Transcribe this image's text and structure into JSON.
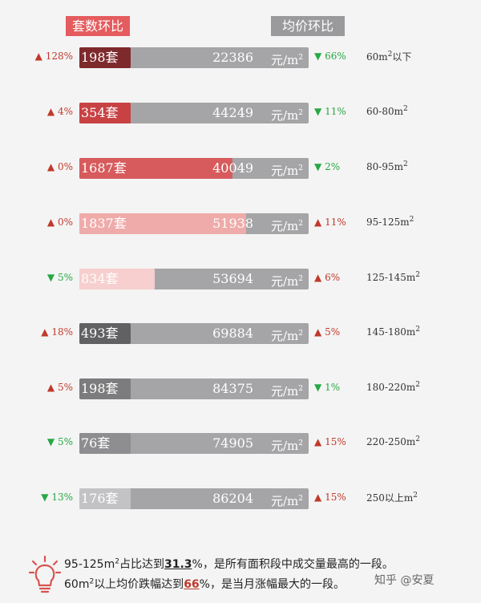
{
  "headers": {
    "count_label": "套数环比",
    "price_label": "均价环比",
    "count_color": "#e45c5e",
    "price_color": "#9a9a9c"
  },
  "colors": {
    "up": "#c0392b",
    "down": "#27a844",
    "bar_bg": "#a5a5a7"
  },
  "unit": {
    "text": "元/m",
    "sup": "2"
  },
  "chart_data": {
    "type": "bar",
    "categories": [
      "60m²以下",
      "60-80m²",
      "80-95m²",
      "95-125m²",
      "125-145m²",
      "145-180m²",
      "180-220m²",
      "220-250m²",
      "250以上m²"
    ],
    "rows": [
      {
        "area": "60m",
        "area_tail": "以下",
        "count": "198套",
        "count_value": 198,
        "count_change": "128%",
        "count_dir": "up",
        "price": "22386",
        "price_change": "66%",
        "price_dir": "down",
        "fill_color": "#7e2a2d"
      },
      {
        "area": "60-80m",
        "area_tail": "",
        "count": "354套",
        "count_value": 354,
        "count_change": "4%",
        "count_dir": "up",
        "price": "44249",
        "price_change": "11%",
        "price_dir": "down",
        "fill_color": "#c84244"
      },
      {
        "area": "80-95m",
        "area_tail": "",
        "count": "1687套",
        "count_value": 1687,
        "count_change": "0%",
        "count_dir": "up",
        "price": "40049",
        "price_change": "2%",
        "price_dir": "down",
        "fill_color": "#d75a5c"
      },
      {
        "area": "95-125m",
        "area_tail": "",
        "count": "1837套",
        "count_value": 1837,
        "count_change": "0%",
        "count_dir": "up",
        "price": "51938",
        "price_change": "11%",
        "price_dir": "up",
        "fill_color": "#efabaa"
      },
      {
        "area": "125-145m",
        "area_tail": "",
        "count": "834套",
        "count_value": 834,
        "count_change": "5%",
        "count_dir": "down",
        "price": "53694",
        "price_change": "6%",
        "price_dir": "up",
        "fill_color": "#f7cfce"
      },
      {
        "area": "145-180m",
        "area_tail": "",
        "count": "493套",
        "count_value": 493,
        "count_change": "18%",
        "count_dir": "up",
        "price": "69884",
        "price_change": "5%",
        "price_dir": "up",
        "fill_color": "#616163"
      },
      {
        "area": "180-220m",
        "area_tail": "",
        "count": "198套",
        "count_value": 198,
        "count_change": "5%",
        "count_dir": "up",
        "price": "84375",
        "price_change": "1%",
        "price_dir": "down",
        "fill_color": "#7c7c7e"
      },
      {
        "area": "220-250m",
        "area_tail": "",
        "count": "76套",
        "count_value": 76,
        "count_change": "5%",
        "count_dir": "down",
        "price": "74905",
        "price_change": "15%",
        "price_dir": "up",
        "fill_color": "#8e8e90"
      },
      {
        "area": "250以上m",
        "area_tail": "",
        "count": "176套",
        "count_value": 176,
        "count_change": "13%",
        "count_dir": "down",
        "price": "86204",
        "price_change": "15%",
        "price_dir": "up",
        "fill_color": "#c3c3c5"
      }
    ]
  },
  "footer": {
    "line1": {
      "pre": "95-125m",
      "mid": "占比达到",
      "hl": "31.3",
      "pct": "%",
      "post": "，是所有面积段中成交量最高的一段。"
    },
    "line2": {
      "pre": "60m",
      "mid": "以上均价跌幅达到",
      "hl": "66",
      "pct": "%",
      "post": "，是当月涨幅最大的一段。"
    },
    "highlight_colors": [
      "#222222",
      "#c0392b"
    ]
  },
  "watermark": "知乎 @安夏"
}
